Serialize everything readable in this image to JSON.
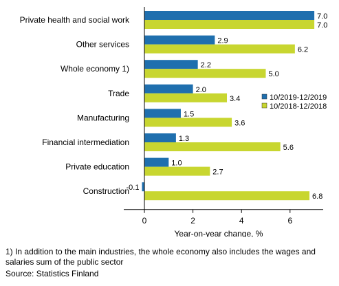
{
  "chart_data": {
    "type": "bar",
    "orientation": "horizontal",
    "categories": [
      "Private health and social work",
      "Other services",
      "Whole economy 1)",
      "Trade",
      "Manufacturing",
      "Financial intermediation",
      "Private education",
      "Construction"
    ],
    "series": [
      {
        "name": "10/2019-12/2019",
        "values": [
          7.0,
          2.9,
          2.2,
          2.0,
          1.5,
          1.3,
          1.0,
          -0.1
        ],
        "labels": [
          "7.0",
          "2.9",
          "2.2",
          "2.0",
          "1.5",
          "1.3",
          "1.0",
          "-0.1"
        ]
      },
      {
        "name": "10/2018-12/2018",
        "values": [
          7.0,
          6.2,
          5.0,
          3.4,
          3.6,
          5.6,
          2.7,
          6.8
        ],
        "labels": [
          "7.0",
          "6.2",
          "5.0",
          "3.4",
          "3.6",
          "5.6",
          "2.7",
          "6.8"
        ]
      }
    ],
    "colors": [
      "#1f6fae",
      "#c8d630"
    ],
    "xlabel": "Year-on-year change, %",
    "xlim": [
      -0.8,
      7.8
    ],
    "xticks": [
      "0",
      "2",
      "4",
      "6"
    ],
    "grid": false,
    "legend_position": "right"
  },
  "notes": {
    "footnote": "1) In addition to the main industries, the whole economy also includes the wages and salaries sum of the public sector",
    "source": "Source: Statistics Finland"
  }
}
